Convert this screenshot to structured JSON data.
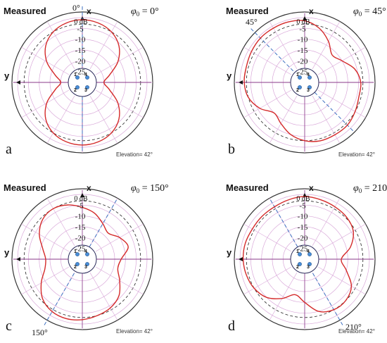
{
  "colors": {
    "pattern": "#d42a2a",
    "grid": "#d9a8d9",
    "axis_y": "#8a3a8a",
    "reference": "#222222",
    "steering": "#3d6fc0",
    "elements": "#4a8fd8",
    "ring": "#2a2a5a"
  },
  "common": {
    "measured_label": "Measured",
    "x_axis_label": "x",
    "y_axis_label": "y",
    "db_ticks": [
      "0 dB",
      "-5",
      "-10",
      "-15",
      "-20",
      "-25"
    ],
    "db_values": [
      0,
      -5,
      -10,
      -15,
      -20,
      -25
    ],
    "elevation_label": "Elevation= 42°",
    "element_labels": [
      "1",
      "2",
      "3",
      "4"
    ],
    "phi_symbol": "φ",
    "phi_subscript": "0"
  },
  "panels": [
    {
      "letter": "a",
      "phi_label": "= 0°",
      "steer_angle_deg": 0,
      "steer_label": "0°",
      "pattern_db": [
        {
          "az": 0,
          "db": -1
        },
        {
          "az": 15,
          "db": -1.5
        },
        {
          "az": 30,
          "db": -3
        },
        {
          "az": 45,
          "db": -6
        },
        {
          "az": 60,
          "db": -11
        },
        {
          "az": 75,
          "db": -17
        },
        {
          "az": 90,
          "db": -20
        },
        {
          "az": 105,
          "db": -17
        },
        {
          "az": 120,
          "db": -11
        },
        {
          "az": 135,
          "db": -6
        },
        {
          "az": 150,
          "db": -3
        },
        {
          "az": 165,
          "db": -1.5
        },
        {
          "az": 180,
          "db": -1
        },
        {
          "az": 195,
          "db": -1.5
        },
        {
          "az": 210,
          "db": -3
        },
        {
          "az": 225,
          "db": -6
        },
        {
          "az": 240,
          "db": -11
        },
        {
          "az": 255,
          "db": -17
        },
        {
          "az": 270,
          "db": -20
        },
        {
          "az": 285,
          "db": -17
        },
        {
          "az": 300,
          "db": -11
        },
        {
          "az": 315,
          "db": -6
        },
        {
          "az": 330,
          "db": -3
        },
        {
          "az": 345,
          "db": -1.5
        }
      ]
    },
    {
      "letter": "b",
      "phi_label": "= 45°",
      "steer_angle_deg": 45,
      "steer_label": "45°",
      "pattern_db": [
        {
          "az": 0,
          "db": -1.5
        },
        {
          "az": 15,
          "db": -1
        },
        {
          "az": 30,
          "db": -1
        },
        {
          "az": 45,
          "db": -1
        },
        {
          "az": 60,
          "db": -1.5
        },
        {
          "az": 75,
          "db": -2
        },
        {
          "az": 90,
          "db": -2
        },
        {
          "az": 105,
          "db": -3
        },
        {
          "az": 120,
          "db": -6
        },
        {
          "az": 135,
          "db": -10
        },
        {
          "az": 150,
          "db": -8
        },
        {
          "az": 165,
          "db": -5
        },
        {
          "az": 180,
          "db": -3
        },
        {
          "az": 195,
          "db": -2
        },
        {
          "az": 210,
          "db": -2
        },
        {
          "az": 225,
          "db": -2
        },
        {
          "az": 240,
          "db": -3
        },
        {
          "az": 255,
          "db": -4
        },
        {
          "az": 270,
          "db": -4
        },
        {
          "az": 285,
          "db": -6
        },
        {
          "az": 300,
          "db": -10
        },
        {
          "az": 315,
          "db": -12
        },
        {
          "az": 330,
          "db": -8
        },
        {
          "az": 345,
          "db": -4
        }
      ]
    },
    {
      "letter": "c",
      "phi_label": "= 150°",
      "steer_angle_deg": 150,
      "steer_label": "150°",
      "pattern_db": [
        {
          "az": 0,
          "db": -6
        },
        {
          "az": 15,
          "db": -4
        },
        {
          "az": 30,
          "db": -3
        },
        {
          "az": 45,
          "db": -4
        },
        {
          "az": 60,
          "db": -7
        },
        {
          "az": 75,
          "db": -11
        },
        {
          "az": 90,
          "db": -13
        },
        {
          "az": 105,
          "db": -12
        },
        {
          "az": 120,
          "db": -8
        },
        {
          "az": 135,
          "db": -4
        },
        {
          "az": 150,
          "db": -2
        },
        {
          "az": 165,
          "db": -1.5
        },
        {
          "az": 180,
          "db": -2
        },
        {
          "az": 195,
          "db": -3
        },
        {
          "az": 210,
          "db": -4
        },
        {
          "az": 225,
          "db": -6
        },
        {
          "az": 240,
          "db": -10
        },
        {
          "az": 255,
          "db": -13
        },
        {
          "az": 270,
          "db": -12
        },
        {
          "az": 285,
          "db": -8
        },
        {
          "az": 300,
          "db": -10
        },
        {
          "az": 315,
          "db": -13
        },
        {
          "az": 330,
          "db": -11
        },
        {
          "az": 345,
          "db": -8
        }
      ]
    },
    {
      "letter": "d",
      "phi_label": "= 210°",
      "steer_angle_deg": 210,
      "steer_label": "210°",
      "pattern_db": [
        {
          "az": 0,
          "db": -1
        },
        {
          "az": 15,
          "db": -1.5
        },
        {
          "az": 30,
          "db": -2
        },
        {
          "az": 45,
          "db": -2
        },
        {
          "az": 60,
          "db": -2
        },
        {
          "az": 75,
          "db": -1.5
        },
        {
          "az": 90,
          "db": -1.5
        },
        {
          "az": 105,
          "db": -2
        },
        {
          "az": 120,
          "db": -3
        },
        {
          "az": 135,
          "db": -5
        },
        {
          "az": 150,
          "db": -9
        },
        {
          "az": 165,
          "db": -13
        },
        {
          "az": 180,
          "db": -10
        },
        {
          "az": 195,
          "db": -5
        },
        {
          "az": 210,
          "db": -3
        },
        {
          "az": 225,
          "db": -3
        },
        {
          "az": 240,
          "db": -5
        },
        {
          "az": 255,
          "db": -10
        },
        {
          "az": 270,
          "db": -13
        },
        {
          "az": 285,
          "db": -8
        },
        {
          "az": 300,
          "db": -4
        },
        {
          "az": 315,
          "db": -2.5
        },
        {
          "az": 330,
          "db": -2
        },
        {
          "az": 345,
          "db": -1.5
        }
      ]
    }
  ]
}
